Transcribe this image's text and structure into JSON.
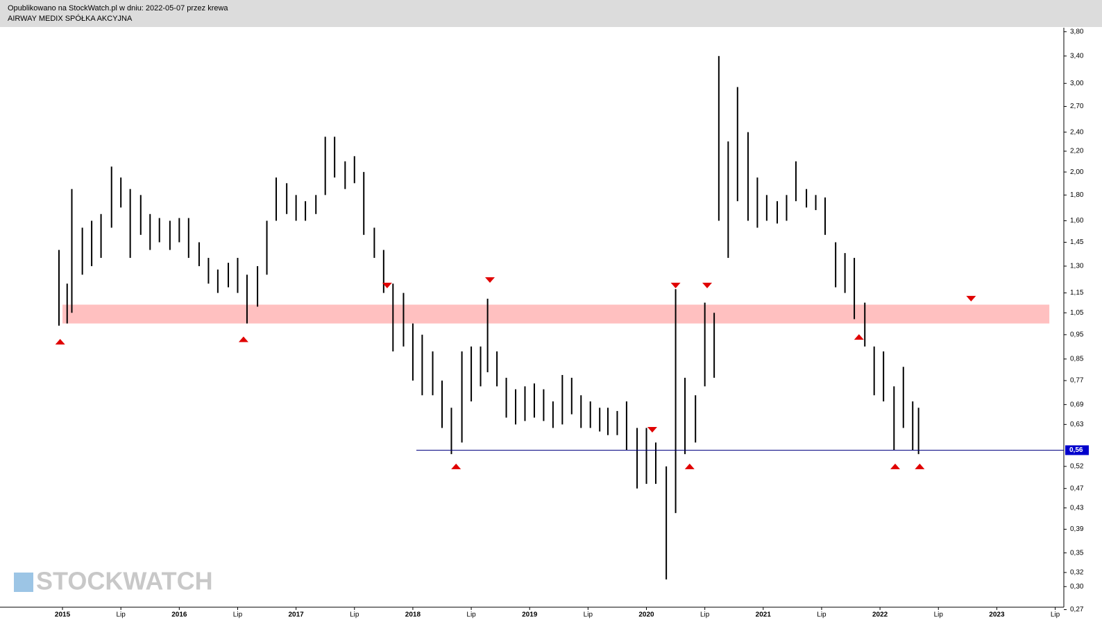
{
  "header": {
    "published": "Opublikowano na StockWatch.pl w dniu: 2022-05-07 przez krewa",
    "company": "AIRWAY MEDIX SPÓŁKA AKCYJNA"
  },
  "watermark": "STOCKWATCH",
  "chart_data": {
    "type": "range-bar",
    "log_scale": true,
    "color": "#000000",
    "x": [
      2014.97,
      2015.04,
      2015.08,
      2015.17,
      2015.25,
      2015.33,
      2015.42,
      2015.5,
      2015.58,
      2015.67,
      2015.75,
      2015.83,
      2015.92,
      2016.0,
      2016.08,
      2016.17,
      2016.25,
      2016.33,
      2016.42,
      2016.5,
      2016.58,
      2016.67,
      2016.75,
      2016.83,
      2016.92,
      2017.0,
      2017.08,
      2017.17,
      2017.25,
      2017.33,
      2017.42,
      2017.5,
      2017.58,
      2017.67,
      2017.75,
      2017.83,
      2017.92,
      2018.0,
      2018.08,
      2018.17,
      2018.25,
      2018.33,
      2018.42,
      2018.5,
      2018.58,
      2018.64,
      2018.72,
      2018.8,
      2018.88,
      2018.96,
      2019.04,
      2019.12,
      2019.2,
      2019.28,
      2019.36,
      2019.44,
      2019.52,
      2019.6,
      2019.67,
      2019.75,
      2019.83,
      2019.92,
      2020.0,
      2020.08,
      2020.17,
      2020.25,
      2020.33,
      2020.42,
      2020.5,
      2020.58,
      2020.62,
      2020.7,
      2020.78,
      2020.87,
      2020.95,
      2021.03,
      2021.12,
      2021.2,
      2021.28,
      2021.37,
      2021.45,
      2021.53,
      2021.62,
      2021.7,
      2021.78,
      2021.87,
      2021.95,
      2022.03,
      2022.12,
      2022.2,
      2022.28,
      2022.33
    ],
    "low": [
      0.99,
      1.0,
      1.05,
      1.25,
      1.3,
      1.35,
      1.55,
      1.7,
      1.35,
      1.5,
      1.4,
      1.45,
      1.4,
      1.45,
      1.35,
      1.3,
      1.2,
      1.15,
      1.18,
      1.15,
      1.0,
      1.08,
      1.25,
      1.6,
      1.65,
      1.6,
      1.6,
      1.65,
      1.8,
      1.95,
      1.85,
      1.9,
      1.5,
      1.35,
      1.15,
      0.88,
      0.9,
      0.77,
      0.72,
      0.72,
      0.62,
      0.55,
      0.58,
      0.7,
      0.75,
      0.8,
      0.75,
      0.65,
      0.63,
      0.64,
      0.65,
      0.64,
      0.62,
      0.63,
      0.66,
      0.62,
      0.62,
      0.61,
      0.6,
      0.6,
      0.56,
      0.47,
      0.48,
      0.48,
      0.31,
      0.42,
      0.55,
      0.58,
      0.75,
      0.78,
      1.6,
      1.35,
      1.75,
      1.6,
      1.55,
      1.6,
      1.58,
      1.6,
      1.75,
      1.7,
      1.68,
      1.5,
      1.18,
      1.15,
      1.02,
      0.9,
      0.72,
      0.7,
      0.56,
      0.62,
      0.56,
      0.55
    ],
    "high": [
      1.4,
      1.2,
      1.85,
      1.55,
      1.6,
      1.65,
      2.05,
      1.95,
      1.85,
      1.8,
      1.65,
      1.62,
      1.6,
      1.62,
      1.62,
      1.45,
      1.35,
      1.28,
      1.32,
      1.35,
      1.25,
      1.3,
      1.6,
      1.95,
      1.9,
      1.8,
      1.75,
      1.8,
      2.35,
      2.35,
      2.1,
      2.15,
      2.0,
      1.55,
      1.4,
      1.2,
      1.15,
      1.0,
      0.95,
      0.88,
      0.77,
      0.68,
      0.88,
      0.9,
      0.9,
      1.12,
      0.88,
      0.78,
      0.74,
      0.75,
      0.76,
      0.74,
      0.7,
      0.79,
      0.78,
      0.72,
      0.7,
      0.68,
      0.68,
      0.67,
      0.7,
      0.62,
      0.62,
      0.58,
      0.52,
      1.17,
      0.78,
      0.72,
      1.1,
      1.05,
      3.4,
      2.3,
      2.95,
      2.4,
      1.95,
      1.8,
      1.75,
      1.8,
      2.1,
      1.85,
      1.8,
      1.78,
      1.45,
      1.38,
      1.35,
      1.1,
      0.9,
      0.88,
      0.75,
      0.82,
      0.7,
      0.68
    ],
    "ylim": [
      0.273,
      3.87
    ],
    "yticks": [
      {
        "value": 3.8,
        "label": "3,80"
      },
      {
        "value": 3.4,
        "label": "3,40"
      },
      {
        "value": 3.0,
        "label": "3,00"
      },
      {
        "value": 2.7,
        "label": "2,70"
      },
      {
        "value": 2.4,
        "label": "2,40"
      },
      {
        "value": 2.2,
        "label": "2,20"
      },
      {
        "value": 2.0,
        "label": "2,00"
      },
      {
        "value": 1.8,
        "label": "1,80"
      },
      {
        "value": 1.6,
        "label": "1,60"
      },
      {
        "value": 1.45,
        "label": "1,45"
      },
      {
        "value": 1.3,
        "label": "1,30"
      },
      {
        "value": 1.15,
        "label": "1,15"
      },
      {
        "value": 1.05,
        "label": "1,05"
      },
      {
        "value": 0.95,
        "label": "0,95"
      },
      {
        "value": 0.85,
        "label": "0,85"
      },
      {
        "value": 0.77,
        "label": "0,77"
      },
      {
        "value": 0.69,
        "label": "0,69"
      },
      {
        "value": 0.63,
        "label": "0,63"
      },
      {
        "value": 0.52,
        "label": "0,52"
      },
      {
        "value": 0.47,
        "label": "0,47"
      },
      {
        "value": 0.43,
        "label": "0,43"
      },
      {
        "value": 0.39,
        "label": "0,39"
      },
      {
        "value": 0.35,
        "label": "0,35"
      },
      {
        "value": 0.32,
        "label": "0,32"
      },
      {
        "value": 0.3,
        "label": "0,30"
      },
      {
        "value": 0.27,
        "label": "0,27"
      }
    ],
    "xlim": [
      2014.465,
      2023.574
    ],
    "xticks": [
      {
        "value": 2015,
        "label": "2015"
      },
      {
        "value": 2015.5,
        "label": "Lip"
      },
      {
        "value": 2016,
        "label": "2016"
      },
      {
        "value": 2016.5,
        "label": "Lip"
      },
      {
        "value": 2017,
        "label": "2017"
      },
      {
        "value": 2017.5,
        "label": "Lip"
      },
      {
        "value": 2018,
        "label": "2018"
      },
      {
        "value": 2018.5,
        "label": "Lip"
      },
      {
        "value": 2019,
        "label": "2019"
      },
      {
        "value": 2019.5,
        "label": "Lip"
      },
      {
        "value": 2020,
        "label": "2020"
      },
      {
        "value": 2020.5,
        "label": "Lip"
      },
      {
        "value": 2021,
        "label": "2021"
      },
      {
        "value": 2021.5,
        "label": "Lip"
      },
      {
        "value": 2022,
        "label": "2022"
      },
      {
        "value": 2022.5,
        "label": "Lip"
      },
      {
        "value": 2023,
        "label": "2023"
      },
      {
        "value": 2023.5,
        "label": "Lip"
      }
    ],
    "zone": {
      "low": 1.0,
      "high": 1.09,
      "x": [
        2015.0,
        2023.45
      ],
      "color": "#ffc0c0"
    },
    "price_line": {
      "value": 0.56,
      "label": "0,56",
      "x_start": 2018.03,
      "color": "#000080",
      "label_color": "#0000cc"
    },
    "markers": [
      {
        "x": 2014.98,
        "y": 0.92,
        "dir": "up"
      },
      {
        "x": 2016.55,
        "y": 0.93,
        "dir": "up"
      },
      {
        "x": 2018.37,
        "y": 0.52,
        "dir": "up"
      },
      {
        "x": 2020.37,
        "y": 0.52,
        "dir": "up"
      },
      {
        "x": 2021.82,
        "y": 0.94,
        "dir": "up"
      },
      {
        "x": 2022.13,
        "y": 0.52,
        "dir": "up"
      },
      {
        "x": 2022.34,
        "y": 0.52,
        "dir": "up"
      },
      {
        "x": 2017.78,
        "y": 1.19,
        "dir": "down"
      },
      {
        "x": 2018.66,
        "y": 1.22,
        "dir": "down"
      },
      {
        "x": 2020.05,
        "y": 0.615,
        "dir": "down"
      },
      {
        "x": 2020.25,
        "y": 1.19,
        "dir": "down"
      },
      {
        "x": 2020.52,
        "y": 1.19,
        "dir": "down"
      },
      {
        "x": 2022.78,
        "y": 1.12,
        "dir": "down"
      }
    ],
    "marker_color": "#e00000"
  }
}
